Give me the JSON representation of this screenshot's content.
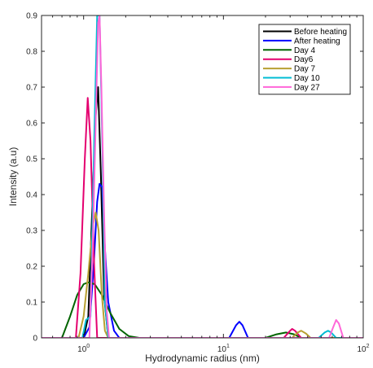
{
  "chart_data": {
    "type": "line",
    "xscale": "log",
    "xlim": [
      0.5,
      100
    ],
    "ylim": [
      0,
      0.9
    ],
    "xlabel": "Hydrodynamic radius (nm)",
    "ylabel": "Intensity (a.u)",
    "x_ticks": [
      {
        "value": 1,
        "base": "10",
        "exp": "0"
      },
      {
        "value": 10,
        "base": "10",
        "exp": "1"
      },
      {
        "value": 100,
        "base": "10",
        "exp": "2"
      }
    ],
    "y_ticks": [
      "0",
      "0.1",
      "0.2",
      "0.3",
      "0.4",
      "0.5",
      "0.6",
      "0.7",
      "0.8",
      "0.9"
    ],
    "legend_position": "top-right",
    "series": [
      {
        "name": "Before heating",
        "color": "#000000",
        "points": [
          [
            0.5,
            0
          ],
          [
            1.0,
            0
          ],
          [
            1.08,
            0.06
          ],
          [
            1.15,
            0.35
          ],
          [
            1.22,
            0.62
          ],
          [
            1.27,
            0.7
          ],
          [
            1.33,
            0.45
          ],
          [
            1.4,
            0.12
          ],
          [
            1.5,
            0
          ],
          [
            100,
            0
          ]
        ]
      },
      {
        "name": "After heating",
        "color": "#0000ff",
        "points": [
          [
            0.5,
            0
          ],
          [
            1.0,
            0
          ],
          [
            1.1,
            0.03
          ],
          [
            1.18,
            0.2
          ],
          [
            1.25,
            0.38
          ],
          [
            1.3,
            0.43
          ],
          [
            1.36,
            0.42
          ],
          [
            1.42,
            0.25
          ],
          [
            1.5,
            0.1
          ],
          [
            1.65,
            0.02
          ],
          [
            1.8,
            0
          ],
          [
            11,
            0
          ],
          [
            12.3,
            0.035
          ],
          [
            13,
            0.045
          ],
          [
            13.7,
            0.035
          ],
          [
            15,
            0
          ],
          [
            100,
            0
          ]
        ]
      },
      {
        "name": "Day 4",
        "color": "#006400",
        "points": [
          [
            0.5,
            0
          ],
          [
            0.7,
            0
          ],
          [
            0.8,
            0.06
          ],
          [
            0.9,
            0.12
          ],
          [
            1.0,
            0.15
          ],
          [
            1.08,
            0.155
          ],
          [
            1.2,
            0.15
          ],
          [
            1.35,
            0.12
          ],
          [
            1.55,
            0.07
          ],
          [
            1.8,
            0.025
          ],
          [
            2.1,
            0.005
          ],
          [
            2.5,
            0
          ],
          [
            20,
            0
          ],
          [
            24,
            0.01
          ],
          [
            28,
            0.015
          ],
          [
            32,
            0.01
          ],
          [
            36,
            0
          ],
          [
            100,
            0
          ]
        ]
      },
      {
        "name": "Day6",
        "color": "#e4006f",
        "points": [
          [
            0.5,
            0
          ],
          [
            0.88,
            0
          ],
          [
            0.95,
            0.18
          ],
          [
            1.02,
            0.5
          ],
          [
            1.07,
            0.67
          ],
          [
            1.12,
            0.55
          ],
          [
            1.19,
            0.2
          ],
          [
            1.25,
            0
          ],
          [
            27,
            0
          ],
          [
            30,
            0.02
          ],
          [
            31,
            0.025
          ],
          [
            32.5,
            0.02
          ],
          [
            36,
            0
          ],
          [
            100,
            0
          ]
        ]
      },
      {
        "name": "Day 7",
        "color": "#b8a032",
        "points": [
          [
            0.5,
            0
          ],
          [
            0.92,
            0
          ],
          [
            1.0,
            0.06
          ],
          [
            1.08,
            0.18
          ],
          [
            1.16,
            0.31
          ],
          [
            1.22,
            0.35
          ],
          [
            1.28,
            0.3
          ],
          [
            1.35,
            0.12
          ],
          [
            1.42,
            0.02
          ],
          [
            1.5,
            0
          ],
          [
            31,
            0
          ],
          [
            34,
            0.015
          ],
          [
            36,
            0.02
          ],
          [
            39,
            0.012
          ],
          [
            42,
            0
          ],
          [
            100,
            0
          ]
        ]
      },
      {
        "name": "Day 10",
        "color": "#00bcd4",
        "points": [
          [
            0.5,
            0
          ],
          [
            0.98,
            0
          ],
          [
            1.04,
            0.05
          ],
          [
            1.12,
            0.06
          ],
          [
            1.19,
            0.55
          ],
          [
            1.25,
            0.9
          ],
          [
            1.3,
            0.9
          ],
          [
            1.36,
            0.55
          ],
          [
            1.42,
            0.1
          ],
          [
            1.5,
            0
          ],
          [
            48,
            0
          ],
          [
            53,
            0.015
          ],
          [
            56,
            0.02
          ],
          [
            59,
            0.015
          ],
          [
            64,
            0
          ],
          [
            100,
            0
          ]
        ]
      },
      {
        "name": "Day 27",
        "color": "#ff66d8",
        "points": [
          [
            0.5,
            0
          ],
          [
            1.1,
            0
          ],
          [
            1.16,
            0.25
          ],
          [
            1.22,
            0.6
          ],
          [
            1.27,
            0.88
          ],
          [
            1.3,
            0.9
          ],
          [
            1.34,
            0.7
          ],
          [
            1.4,
            0.35
          ],
          [
            1.46,
            0.08
          ],
          [
            1.52,
            0
          ],
          [
            57,
            0
          ],
          [
            61,
            0.03
          ],
          [
            64,
            0.05
          ],
          [
            67,
            0.04
          ],
          [
            72,
            0
          ],
          [
            100,
            0
          ]
        ]
      }
    ]
  }
}
